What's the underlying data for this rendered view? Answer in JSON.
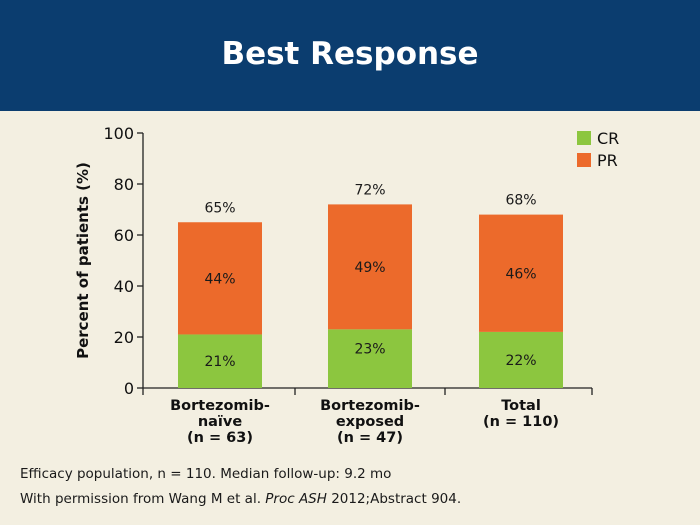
{
  "title": "Best Response",
  "chart_data": {
    "type": "bar",
    "stacked": true,
    "categories": [
      [
        "Bortezomib-",
        "naïve",
        "(n = 63)"
      ],
      [
        "Bortezomib-",
        "exposed",
        "(n = 47)"
      ],
      [
        "Total",
        "(n = 110)"
      ]
    ],
    "series": [
      {
        "name": "CR",
        "color": "#8cc63f",
        "values": [
          21,
          23,
          22
        ],
        "labels": [
          "21%",
          "23%",
          "22%"
        ]
      },
      {
        "name": "PR",
        "color": "#ec6a2b",
        "values": [
          44,
          49,
          46
        ],
        "labels": [
          "44%",
          "49%",
          "46%"
        ]
      }
    ],
    "totals": [
      65,
      72,
      68
    ],
    "total_labels": [
      "65%",
      "72%",
      "68%"
    ],
    "ylabel": "Percent of patients (%)",
    "ylim": [
      0,
      100
    ],
    "yticks": [
      0,
      20,
      40,
      60,
      80,
      100
    ],
    "grid": false,
    "legend_position": "top-right"
  },
  "footnotes": {
    "line1": "Efficacy population, n = 110. Median follow-up: 9.2 mo",
    "line2_prefix": "With permission from Wang M et al. ",
    "line2_italic": "Proc ASH",
    "line2_suffix": " 2012;Abstract 904."
  }
}
